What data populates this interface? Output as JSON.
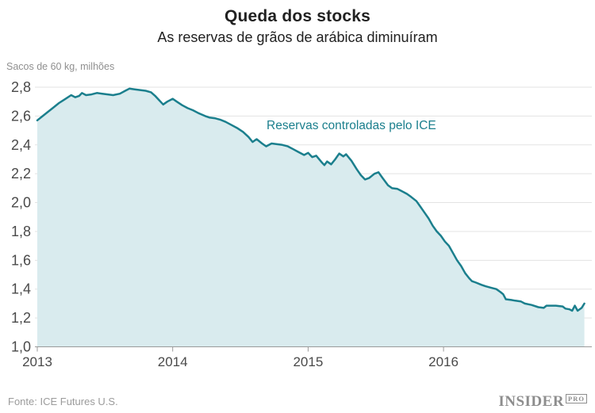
{
  "header": {
    "title": "Queda dos stocks",
    "subtitle": "As reservas de grãos de arábica diminuíram"
  },
  "axis_unit_label": "Sacos de 60 kg, milhões",
  "annotation": {
    "text": "Reservas controladas pelo ICE",
    "color": "#1b7f8d"
  },
  "footer": {
    "source": "Fonte: ICE Futures U.S.",
    "logo": {
      "name": "INSIDER",
      "suffix": "PRO"
    }
  },
  "colors": {
    "line": "#1b7f8d",
    "fill": "#d9ebee",
    "grid": "#e3e3e3",
    "axis": "#9a9a9a",
    "tick_label": "#4a4a4a",
    "title": "#212121",
    "muted": "#8f8f8f"
  },
  "chart_data": {
    "type": "area",
    "title": "Queda dos stocks",
    "subtitle": "As reservas de grãos de arábica diminuíram",
    "xlabel": "",
    "ylabel": "Sacos de 60 kg, milhões",
    "xlim": [
      2013.0,
      2017.06
    ],
    "ylim": [
      1.0,
      2.8
    ],
    "grid": "horizontal",
    "legend_position": "inline-annotation",
    "xticks": {
      "values": [
        2013,
        2014,
        2015,
        2016
      ],
      "labels": [
        "2013",
        "2014",
        "2015",
        "2016"
      ]
    },
    "yticks": {
      "values": [
        1.0,
        1.2,
        1.4,
        1.6,
        1.8,
        2.0,
        2.2,
        2.4,
        2.6,
        2.8
      ],
      "labels": [
        "1,0",
        "1,2",
        "1,4",
        "1,6",
        "1,8",
        "2,0",
        "2,2",
        "2,4",
        "2,6",
        "2,8"
      ]
    },
    "series": [
      {
        "name": "Reservas controladas pelo ICE",
        "points": [
          [
            2013.0,
            2.57
          ],
          [
            2013.04,
            2.6
          ],
          [
            2013.08,
            2.63
          ],
          [
            2013.12,
            2.66
          ],
          [
            2013.16,
            2.69
          ],
          [
            2013.21,
            2.72
          ],
          [
            2013.25,
            2.745
          ],
          [
            2013.28,
            2.73
          ],
          [
            2013.31,
            2.74
          ],
          [
            2013.33,
            2.76
          ],
          [
            2013.36,
            2.745
          ],
          [
            2013.4,
            2.75
          ],
          [
            2013.44,
            2.76
          ],
          [
            2013.48,
            2.755
          ],
          [
            2013.52,
            2.75
          ],
          [
            2013.56,
            2.745
          ],
          [
            2013.61,
            2.755
          ],
          [
            2013.65,
            2.775
          ],
          [
            2013.68,
            2.79
          ],
          [
            2013.72,
            2.785
          ],
          [
            2013.76,
            2.78
          ],
          [
            2013.8,
            2.775
          ],
          [
            2013.84,
            2.765
          ],
          [
            2013.87,
            2.74
          ],
          [
            2013.9,
            2.71
          ],
          [
            2013.93,
            2.68
          ],
          [
            2013.96,
            2.7
          ],
          [
            2014.0,
            2.72
          ],
          [
            2014.03,
            2.7
          ],
          [
            2014.07,
            2.675
          ],
          [
            2014.11,
            2.655
          ],
          [
            2014.15,
            2.64
          ],
          [
            2014.19,
            2.62
          ],
          [
            2014.24,
            2.6
          ],
          [
            2014.27,
            2.59
          ],
          [
            2014.31,
            2.585
          ],
          [
            2014.35,
            2.575
          ],
          [
            2014.39,
            2.56
          ],
          [
            2014.43,
            2.54
          ],
          [
            2014.48,
            2.515
          ],
          [
            2014.52,
            2.49
          ],
          [
            2014.56,
            2.455
          ],
          [
            2014.59,
            2.42
          ],
          [
            2014.62,
            2.44
          ],
          [
            2014.66,
            2.41
          ],
          [
            2014.69,
            2.39
          ],
          [
            2014.73,
            2.41
          ],
          [
            2014.77,
            2.405
          ],
          [
            2014.81,
            2.4
          ],
          [
            2014.85,
            2.39
          ],
          [
            2014.89,
            2.37
          ],
          [
            2014.93,
            2.35
          ],
          [
            2014.97,
            2.33
          ],
          [
            2015.0,
            2.345
          ],
          [
            2015.03,
            2.315
          ],
          [
            2015.06,
            2.325
          ],
          [
            2015.1,
            2.28
          ],
          [
            2015.12,
            2.26
          ],
          [
            2015.14,
            2.285
          ],
          [
            2015.17,
            2.265
          ],
          [
            2015.2,
            2.3
          ],
          [
            2015.23,
            2.34
          ],
          [
            2015.26,
            2.32
          ],
          [
            2015.28,
            2.335
          ],
          [
            2015.32,
            2.29
          ],
          [
            2015.36,
            2.23
          ],
          [
            2015.39,
            2.19
          ],
          [
            2015.42,
            2.16
          ],
          [
            2015.45,
            2.17
          ],
          [
            2015.49,
            2.2
          ],
          [
            2015.52,
            2.21
          ],
          [
            2015.55,
            2.17
          ],
          [
            2015.59,
            2.12
          ],
          [
            2015.62,
            2.1
          ],
          [
            2015.66,
            2.095
          ],
          [
            2015.69,
            2.08
          ],
          [
            2015.73,
            2.06
          ],
          [
            2015.76,
            2.04
          ],
          [
            2015.8,
            2.01
          ],
          [
            2015.83,
            1.97
          ],
          [
            2015.86,
            1.93
          ],
          [
            2015.89,
            1.89
          ],
          [
            2015.92,
            1.84
          ],
          [
            2015.95,
            1.8
          ],
          [
            2015.98,
            1.77
          ],
          [
            2016.01,
            1.73
          ],
          [
            2016.04,
            1.7
          ],
          [
            2016.07,
            1.65
          ],
          [
            2016.1,
            1.6
          ],
          [
            2016.13,
            1.56
          ],
          [
            2016.16,
            1.51
          ],
          [
            2016.19,
            1.475
          ],
          [
            2016.21,
            1.455
          ],
          [
            2016.24,
            1.445
          ],
          [
            2016.28,
            1.43
          ],
          [
            2016.31,
            1.42
          ],
          [
            2016.35,
            1.41
          ],
          [
            2016.39,
            1.4
          ],
          [
            2016.42,
            1.38
          ],
          [
            2016.44,
            1.365
          ],
          [
            2016.46,
            1.33
          ],
          [
            2016.5,
            1.325
          ],
          [
            2016.53,
            1.32
          ],
          [
            2016.57,
            1.315
          ],
          [
            2016.6,
            1.3
          ],
          [
            2016.65,
            1.29
          ],
          [
            2016.7,
            1.275
          ],
          [
            2016.74,
            1.27
          ],
          [
            2016.76,
            1.285
          ],
          [
            2016.83,
            1.285
          ],
          [
            2016.88,
            1.28
          ],
          [
            2016.9,
            1.265
          ],
          [
            2016.93,
            1.26
          ],
          [
            2016.95,
            1.25
          ],
          [
            2016.97,
            1.285
          ],
          [
            2016.99,
            1.25
          ],
          [
            2017.02,
            1.27
          ],
          [
            2017.04,
            1.3
          ]
        ]
      }
    ]
  }
}
